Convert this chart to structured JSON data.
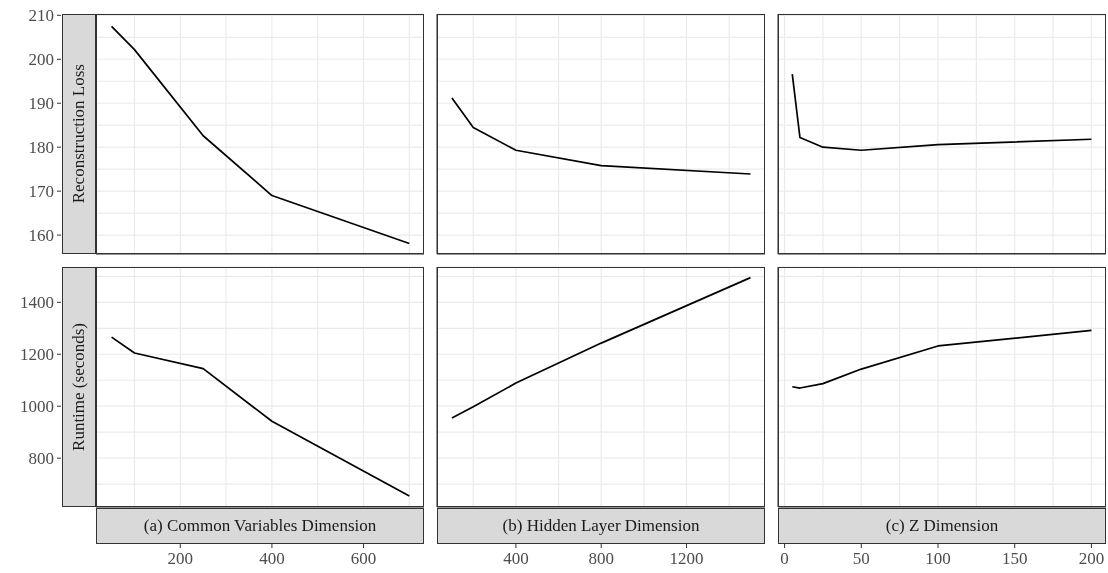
{
  "chart_data": [
    {
      "type": "line",
      "ylabel": "Reconstruction Loss",
      "x": [
        50,
        100,
        250,
        400,
        700
      ],
      "series": [
        {
          "color": "#000000",
          "values": [
            207.5,
            202.2,
            182.6,
            169.0,
            158.1
          ]
        }
      ],
      "xlim": [
        16,
        732
      ],
      "xticks": [
        {
          "value": 100,
          "label": null
        },
        200,
        {
          "value": 300,
          "label": null
        },
        400,
        {
          "value": 500,
          "label": null
        },
        600,
        {
          "value": 700,
          "label": null
        }
      ],
      "ylim": [
        155.7,
        210.3
      ],
      "yticks": [
        160,
        {
          "value": 165,
          "label": null
        },
        170,
        {
          "value": 175,
          "label": null
        },
        180,
        {
          "value": 185,
          "label": null
        },
        190,
        {
          "value": 195,
          "label": null
        },
        200,
        {
          "value": 205,
          "label": null
        },
        210
      ],
      "grid": true,
      "tick_labels": "y"
    },
    {
      "type": "line",
      "x": [
        100,
        200,
        400,
        800,
        1500
      ],
      "series": [
        {
          "color": "#000000",
          "values": [
            191.2,
            184.5,
            179.3,
            175.8,
            173.9
          ]
        }
      ],
      "xlim": [
        30,
        1568
      ],
      "xticks": [
        {
          "value": 200,
          "label": null
        },
        400,
        {
          "value": 600,
          "label": null
        },
        800,
        {
          "value": 1000,
          "label": null
        },
        1200,
        {
          "value": 1400,
          "label": null
        }
      ],
      "ylim": [
        155.7,
        210.3
      ],
      "yticks": [
        160,
        {
          "value": 165,
          "label": null
        },
        170,
        {
          "value": 175,
          "label": null
        },
        180,
        {
          "value": 185,
          "label": null
        },
        190,
        {
          "value": 195,
          "label": null
        },
        200,
        {
          "value": 205,
          "label": null
        },
        210
      ],
      "grid": true,
      "tick_labels": false
    },
    {
      "type": "line",
      "x": [
        5,
        10,
        25,
        50,
        100,
        200
      ],
      "series": [
        {
          "color": "#000000",
          "values": [
            196.6,
            182.2,
            180.0,
            179.3,
            180.6,
            181.8
          ]
        }
      ],
      "xlim": [
        -4.3,
        209.5
      ],
      "xticks": [
        0,
        {
          "value": 25,
          "label": null
        },
        50,
        {
          "value": 75,
          "label": null
        },
        100,
        {
          "value": 125,
          "label": null
        },
        150,
        {
          "value": 175,
          "label": null
        },
        200
      ],
      "ylim": [
        155.7,
        210.3
      ],
      "yticks": [
        160,
        {
          "value": 165,
          "label": null
        },
        170,
        {
          "value": 175,
          "label": null
        },
        180,
        {
          "value": 185,
          "label": null
        },
        190,
        {
          "value": 195,
          "label": null
        },
        200,
        {
          "value": 205,
          "label": null
        },
        210
      ],
      "grid": true,
      "tick_labels": false
    },
    {
      "type": "line",
      "ylabel": "Runtime (seconds)",
      "xlabel": "(a) Common Variables Dimension",
      "x": [
        50,
        100,
        250,
        400,
        700
      ],
      "series": [
        {
          "color": "#000000",
          "values": [
            1266,
            1205,
            1145,
            942,
            654
          ]
        }
      ],
      "xlim": [
        16,
        732
      ],
      "xticks": [
        {
          "value": 100,
          "label": null
        },
        200,
        {
          "value": 300,
          "label": null
        },
        400,
        {
          "value": 500,
          "label": null
        },
        600,
        {
          "value": 700,
          "label": null
        }
      ],
      "ylim": [
        612,
        1536
      ],
      "yticks": [
        {
          "value": 700,
          "label": null
        },
        800,
        {
          "value": 900,
          "label": null
        },
        1000,
        {
          "value": 1100,
          "label": null
        },
        1200,
        {
          "value": 1300,
          "label": null
        },
        1400,
        {
          "value": 1500,
          "label": null
        }
      ],
      "grid": true
    },
    {
      "type": "line",
      "xlabel": "(b) Hidden Layer Dimension",
      "x": [
        100,
        200,
        400,
        800,
        1500
      ],
      "series": [
        {
          "color": "#000000",
          "values": [
            955,
            998,
            1089,
            1243,
            1495
          ]
        }
      ],
      "xlim": [
        30,
        1568
      ],
      "xticks": [
        {
          "value": 200,
          "label": null
        },
        400,
        {
          "value": 600,
          "label": null
        },
        800,
        {
          "value": 1000,
          "label": null
        },
        1200,
        {
          "value": 1400,
          "label": null
        }
      ],
      "ylim": [
        612,
        1536
      ],
      "yticks": [
        {
          "value": 700,
          "label": null
        },
        800,
        {
          "value": 900,
          "label": null
        },
        1000,
        {
          "value": 1100,
          "label": null
        },
        1200,
        {
          "value": 1300,
          "label": null
        },
        1400,
        {
          "value": 1500,
          "label": null
        }
      ],
      "grid": true,
      "tick_labels": "x"
    },
    {
      "type": "line",
      "xlabel": "(c) Z Dimension",
      "x": [
        5,
        10,
        25,
        50,
        100,
        200
      ],
      "series": [
        {
          "color": "#000000",
          "values": [
            1075,
            1070,
            1087,
            1143,
            1232,
            1292
          ]
        }
      ],
      "xlim": [
        -4.3,
        209.5
      ],
      "xticks": [
        0,
        {
          "value": 25,
          "label": null
        },
        50,
        {
          "value": 75,
          "label": null
        },
        100,
        {
          "value": 125,
          "label": null
        },
        150,
        {
          "value": 175,
          "label": null
        },
        200
      ],
      "ylim": [
        612,
        1536
      ],
      "yticks": [
        {
          "value": 700,
          "label": null
        },
        800,
        {
          "value": 900,
          "label": null
        },
        1000,
        {
          "value": 1100,
          "label": null
        },
        1200,
        {
          "value": 1300,
          "label": null
        },
        1400,
        {
          "value": 1500,
          "label": null
        }
      ],
      "grid": true,
      "tick_labels": "x"
    }
  ]
}
